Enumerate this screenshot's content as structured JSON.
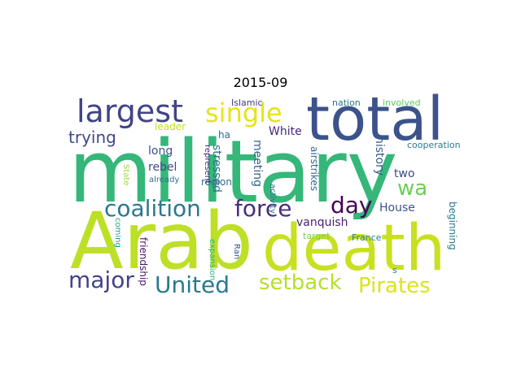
{
  "title": "2015-09",
  "words": [
    {
      "text": "military",
      "color": "#35b779"
    },
    {
      "text": "Arab",
      "color": "#bddf26"
    },
    {
      "text": "death",
      "color": "#c8e020"
    },
    {
      "text": "total",
      "color": "#3b528b"
    },
    {
      "text": "largest",
      "color": "#414487"
    },
    {
      "text": "single",
      "color": "#e5e419"
    },
    {
      "text": "coalition",
      "color": "#2a788e"
    },
    {
      "text": "force",
      "color": "#472d7b"
    },
    {
      "text": "day",
      "color": "#440154"
    },
    {
      "text": "wa",
      "color": "#6ece58"
    },
    {
      "text": "major",
      "color": "#414487"
    },
    {
      "text": "United",
      "color": "#2a788e"
    },
    {
      "text": "setback",
      "color": "#b5de2b"
    },
    {
      "text": "Pirates",
      "color": "#dde318"
    },
    {
      "text": "trying",
      "color": "#3e4a89"
    },
    {
      "text": "White",
      "color": "#482878"
    },
    {
      "text": "leader",
      "color": "#c2df23"
    },
    {
      "text": "ha",
      "color": "#31688e"
    },
    {
      "text": "Islamic",
      "color": "#453781"
    },
    {
      "text": "nation",
      "color": "#2c728e"
    },
    {
      "text": "involved",
      "color": "#5ec962"
    },
    {
      "text": "cooperation",
      "color": "#287d8e"
    },
    {
      "text": "long",
      "color": "#3b528b"
    },
    {
      "text": "rebel",
      "color": "#3f4788"
    },
    {
      "text": "already",
      "color": "#2d708e"
    },
    {
      "text": "region",
      "color": "#31688e"
    },
    {
      "text": "represent",
      "color": "#482677"
    },
    {
      "text": "stressed",
      "color": "#2d708e"
    },
    {
      "text": "meeting",
      "color": "#33638d"
    },
    {
      "text": "history",
      "color": "#365c8d"
    },
    {
      "text": "two",
      "color": "#3e4a89"
    },
    {
      "text": "House",
      "color": "#3b528b"
    },
    {
      "text": "beginning",
      "color": "#2a788e"
    },
    {
      "text": "vanquish",
      "color": "#482173"
    },
    {
      "text": "target",
      "color": "#7ad151"
    },
    {
      "text": "France",
      "color": "#26828e"
    },
    {
      "text": "activity",
      "color": "#2f6c8e"
    },
    {
      "text": "airstrikes",
      "color": "#31688e"
    },
    {
      "text": "State",
      "color": "#9fda3a"
    },
    {
      "text": "coming",
      "color": "#1fa187"
    },
    {
      "text": "friendship",
      "color": "#481467"
    },
    {
      "text": "expansion",
      "color": "#2db27d"
    },
    {
      "text": "Ran",
      "color": "#3b528b"
    },
    {
      "text": "s",
      "color": "#24868e"
    }
  ]
}
